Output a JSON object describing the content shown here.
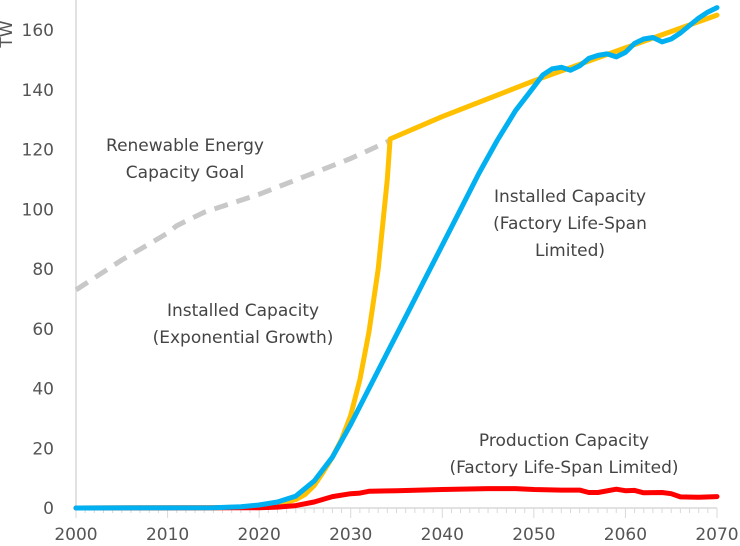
{
  "chart_data": {
    "type": "line",
    "title": "",
    "xlabel": "",
    "ylabel": "TW",
    "xlim": [
      2000,
      2070
    ],
    "ylim": [
      0,
      170
    ],
    "x_ticks": [
      "2000",
      "2010",
      "2020",
      "2030",
      "2040",
      "2050",
      "2060",
      "2070"
    ],
    "y_ticks": [
      "0",
      "20",
      "40",
      "60",
      "80",
      "100",
      "120",
      "140",
      "160"
    ],
    "grid": false,
    "legend": "none",
    "series": [
      {
        "name": "Renewable Energy Capacity Goal",
        "color": "#c8c8c8",
        "dashed": true,
        "x": [
          2000,
          2005,
          2010,
          2011,
          2014,
          2020,
          2025,
          2030,
          2034.3
        ],
        "y": [
          73,
          83,
          92,
          94.5,
          99,
          105,
          111,
          117,
          123
        ]
      },
      {
        "name": "Installed Capacity (Exponential Growth)",
        "color": "#ffc000",
        "x": [
          2000,
          2015,
          2018,
          2020,
          2022,
          2024,
          2025,
          2026,
          2027,
          2028,
          2029,
          2030,
          2031,
          2032,
          2033,
          2034,
          2034.3,
          2040,
          2050,
          2060,
          2070
        ],
        "y": [
          0,
          0.1,
          0.3,
          0.6,
          1.2,
          2.8,
          4.5,
          7.5,
          12,
          17,
          23,
          31,
          43,
          59,
          80,
          110,
          123.5,
          131,
          143,
          154,
          165
        ]
      },
      {
        "name": "Installed Capacity (Factory Life-Span Limited)",
        "color": "#00b0f0",
        "x": [
          2000,
          2015,
          2018,
          2020,
          2022,
          2024,
          2026,
          2028,
          2030,
          2032,
          2034,
          2036,
          2038,
          2040,
          2042,
          2044,
          2046,
          2048,
          2050,
          2051,
          2052,
          2053,
          2054,
          2055,
          2056,
          2057,
          2058,
          2059,
          2060,
          2061,
          2062,
          2063,
          2064,
          2065,
          2066,
          2067,
          2068,
          2069,
          2070
        ],
        "y": [
          0,
          0.1,
          0.4,
          1,
          2,
          4,
          9,
          17,
          28,
          40,
          52,
          64,
          76,
          88,
          100,
          112,
          123,
          133,
          141,
          145,
          147,
          147.5,
          146.5,
          148,
          150.5,
          151.5,
          152,
          151,
          152.5,
          155.5,
          157,
          157.5,
          156,
          157,
          159,
          161.5,
          164,
          166,
          167.5
        ]
      },
      {
        "name": "Production Capacity (Factory Life-Span Limited)",
        "color": "#ff0000",
        "x": [
          2000,
          2020,
          2022,
          2024,
          2026,
          2028,
          2030,
          2031,
          2032,
          2035,
          2040,
          2045,
          2048,
          2050,
          2053,
          2055,
          2056,
          2057,
          2059,
          2060,
          2061,
          2062,
          2064,
          2065,
          2066,
          2068,
          2070
        ],
        "y": [
          0,
          0.1,
          0.3,
          0.8,
          2,
          3.8,
          4.8,
          5,
          5.6,
          5.8,
          6.2,
          6.5,
          6.5,
          6.2,
          6,
          6,
          5.2,
          5.2,
          6.3,
          5.8,
          5.9,
          5.1,
          5.2,
          4.8,
          3.7,
          3.6,
          3.8
        ]
      }
    ],
    "annotations": [
      {
        "lines": [
          "Renewable Energy",
          "Capacity Goal"
        ]
      },
      {
        "lines": [
          "Installed Capacity",
          "(Exponential Growth)"
        ]
      },
      {
        "lines": [
          "Installed Capacity",
          "(Factory Life-Span",
          "Limited)"
        ]
      },
      {
        "lines": [
          "Production Capacity",
          "(Factory Life-Span Limited)"
        ]
      }
    ]
  }
}
